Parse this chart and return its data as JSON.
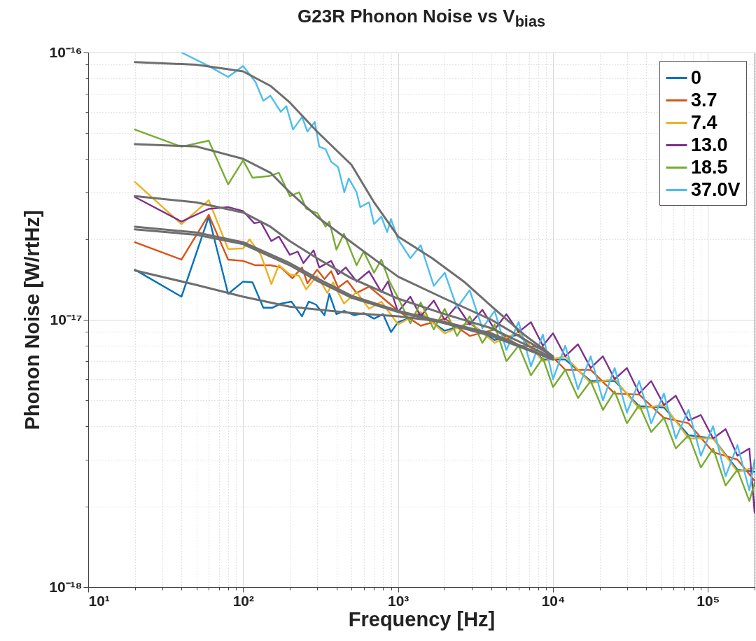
{
  "chart_data": {
    "type": "line",
    "title": "G23R Phonon Noise vs V$_{bias}$",
    "xlabel": "Frequency [Hz]",
    "ylabel": "Phonon Noise [W/rtHz]",
    "log": "xy",
    "grid": true,
    "legend": "top right",
    "xlim": [
      10,
      200000
    ],
    "ylim": [
      1e-18,
      1e-16
    ],
    "xticks": [
      {
        "value": 10,
        "label": "10¹"
      },
      {
        "value": 20,
        "label": null
      },
      {
        "value": 30,
        "label": null
      },
      {
        "value": 40,
        "label": null
      },
      {
        "value": 50,
        "label": null
      },
      {
        "value": 60,
        "label": null
      },
      {
        "value": 70,
        "label": null
      },
      {
        "value": 80,
        "label": null
      },
      {
        "value": 90,
        "label": null
      },
      {
        "value": 100,
        "label": "10²"
      },
      {
        "value": 200,
        "label": null
      },
      {
        "value": 300,
        "label": null
      },
      {
        "value": 400,
        "label": null
      },
      {
        "value": 500,
        "label": null
      },
      {
        "value": 600,
        "label": null
      },
      {
        "value": 700,
        "label": null
      },
      {
        "value": 800,
        "label": null
      },
      {
        "value": 900,
        "label": null
      },
      {
        "value": 1000,
        "label": "10³"
      },
      {
        "value": 2000,
        "label": null
      },
      {
        "value": 3000,
        "label": null
      },
      {
        "value": 4000,
        "label": null
      },
      {
        "value": 5000,
        "label": null
      },
      {
        "value": 6000,
        "label": null
      },
      {
        "value": 7000,
        "label": null
      },
      {
        "value": 8000,
        "label": null
      },
      {
        "value": 9000,
        "label": null
      },
      {
        "value": 10000,
        "label": "10⁴"
      },
      {
        "value": 20000,
        "label": null
      },
      {
        "value": 30000,
        "label": null
      },
      {
        "value": 40000,
        "label": null
      },
      {
        "value": 50000,
        "label": null
      },
      {
        "value": 60000,
        "label": null
      },
      {
        "value": 70000,
        "label": null
      },
      {
        "value": 80000,
        "label": null
      },
      {
        "value": 90000,
        "label": null
      },
      {
        "value": 100000,
        "label": "10⁵"
      },
      {
        "value": 200000,
        "label": null
      }
    ],
    "yticks": [
      {
        "value": 1e-18,
        "label": "10⁻¹⁸"
      },
      {
        "value": 2e-18,
        "label": null
      },
      {
        "value": 3e-18,
        "label": null
      },
      {
        "value": 4e-18,
        "label": null
      },
      {
        "value": 5e-18,
        "label": null
      },
      {
        "value": 6e-18,
        "label": null
      },
      {
        "value": 7e-18,
        "label": null
      },
      {
        "value": 8e-18,
        "label": null
      },
      {
        "value": 9e-18,
        "label": null
      },
      {
        "value": 1e-17,
        "label": "10⁻¹⁷"
      },
      {
        "value": 2e-17,
        "label": null
      },
      {
        "value": 3e-17,
        "label": null
      },
      {
        "value": 4e-17,
        "label": null
      },
      {
        "value": 5e-17,
        "label": null
      },
      {
        "value": 6e-17,
        "label": null
      },
      {
        "value": 7e-17,
        "label": null
      },
      {
        "value": 8e-17,
        "label": null
      },
      {
        "value": 9e-17,
        "label": null
      },
      {
        "value": 1e-16,
        "label": "10⁻¹⁶"
      }
    ],
    "series": [
      {
        "name": "0",
        "color": "#0072bd",
        "x": [
          20,
          40,
          60,
          80,
          100,
          115,
          135,
          155,
          175,
          205,
          240,
          265,
          295,
          335,
          360,
          400,
          450,
          520,
          600,
          700,
          800,
          900,
          1000,
          1400,
          2000,
          2900,
          4200,
          6000,
          8600,
          12000,
          17500,
          25000,
          36000,
          52000,
          75000,
          108000,
          155000,
          200000
        ],
        "values": [
          1.54e-17,
          1.22e-17,
          2.43e-17,
          1.25e-17,
          1.39e-17,
          1.38e-17,
          1.11e-17,
          1.11e-17,
          1.15e-17,
          1.17e-17,
          1.03e-17,
          1.17e-17,
          1.14e-17,
          1.04e-17,
          1.25e-17,
          1.05e-17,
          1.08e-17,
          1.04e-17,
          1.06e-17,
          1.01e-17,
          1.05e-17,
          9e-18,
          9.8e-18,
          1.05e-17,
          9.1e-18,
          9.7e-18,
          8.4e-18,
          8.8e-18,
          7.1e-18,
          7.1e-18,
          5.9e-18,
          5.9e-18,
          4.75e-18,
          4.7e-18,
          3.7e-18,
          3.6e-18,
          2.75e-18,
          2.7e-18
        ]
      },
      {
        "name": "3.7",
        "color": "#d95319",
        "x": [
          20,
          40,
          60,
          80,
          100,
          120,
          150,
          175,
          208,
          240,
          260,
          300,
          335,
          370,
          410,
          470,
          540,
          650,
          780,
          1000,
          1400,
          2000,
          2900,
          4200,
          6000,
          8600,
          12000,
          17500,
          25000,
          36000,
          52000,
          75000,
          108000,
          155000,
          200000
        ],
        "values": [
          1.95e-17,
          1.68e-17,
          2.47e-17,
          1.68e-17,
          1.66e-17,
          1.6e-17,
          1.6e-17,
          1.57e-17,
          1.43e-17,
          1.57e-17,
          1.37e-17,
          1.54e-17,
          1.42e-17,
          1.52e-17,
          1.32e-17,
          1.4e-17,
          1.26e-17,
          1.33e-17,
          1.22e-17,
          1.08e-17,
          9.5e-18,
          1.01e-17,
          8.7e-18,
          9.2e-18,
          8e-18,
          7.9e-18,
          6.5e-18,
          6.5e-18,
          5.3e-18,
          5.25e-18,
          4.3e-18,
          4.1e-18,
          3.2e-18,
          3e-18,
          2.5e-18
        ]
      },
      {
        "name": "7.4",
        "color": "#edb120",
        "x": [
          20,
          40,
          60,
          80,
          100,
          110,
          130,
          152,
          170,
          200,
          230,
          255,
          300,
          350,
          380,
          447,
          540,
          650,
          780,
          1000,
          1400,
          2000,
          2900,
          4200,
          6000,
          8600,
          12000,
          17500,
          25000,
          36000,
          52000,
          75000,
          108000,
          155000,
          200000
        ],
        "values": [
          3.28e-17,
          2.28e-17,
          2.8e-17,
          1.84e-17,
          1.85e-17,
          2e-17,
          1.75e-17,
          1.36e-17,
          1.6e-17,
          1.48e-17,
          1.46e-17,
          1.3e-17,
          1.46e-17,
          1.26e-17,
          1.38e-17,
          1.15e-17,
          1.27e-17,
          1.1e-17,
          1.17e-17,
          9.6e-18,
          1.07e-17,
          8.9e-18,
          9.8e-18,
          8.2e-18,
          9e-18,
          7e-18,
          7.3e-18,
          5.8e-18,
          6e-18,
          4.65e-18,
          4.8e-18,
          3.6e-18,
          3.6e-18,
          2.7e-18,
          2.8e-18
        ]
      },
      {
        "name": "13.0",
        "color": "#7e2f8e",
        "x": [
          20,
          40,
          60,
          80,
          100,
          118,
          130,
          152,
          170,
          200,
          225,
          245,
          285,
          310,
          370,
          410,
          460,
          540,
          650,
          780,
          860,
          1000,
          1200,
          1400,
          1700,
          2000,
          2400,
          2900,
          3500,
          4200,
          5000,
          6000,
          7200,
          8600,
          10000,
          12000,
          14500,
          17500,
          21000,
          25000,
          30000,
          36000,
          43000,
          52000,
          62000,
          75000,
          90000,
          108000,
          130000,
          155000,
          185000,
          200000
        ],
        "values": [
          2.88e-17,
          2.33e-17,
          2.6e-17,
          2.64e-17,
          2.55e-17,
          2.3e-17,
          2.32e-17,
          1.97e-17,
          2.05e-17,
          1.75e-17,
          1.8e-17,
          1.63e-17,
          1.82e-17,
          1.57e-17,
          1.66e-17,
          1.48e-17,
          1.57e-17,
          1.39e-17,
          1.52e-17,
          1.27e-17,
          1.39e-17,
          1.07e-17,
          1.22e-17,
          1.03e-17,
          1.18e-17,
          1e-17,
          1.13e-17,
          9.6e-18,
          1.09e-17,
          9.2e-18,
          1.05e-17,
          9e-18,
          9.8e-18,
          8e-18,
          8.9e-18,
          7.3e-18,
          8.1e-18,
          6.6e-18,
          7.3e-18,
          6e-18,
          6.6e-18,
          5.3e-18,
          5.9e-18,
          4.8e-18,
          5.2e-18,
          4.2e-18,
          4.4e-18,
          3.6e-18,
          3.9e-18,
          3.1e-18,
          3.3e-18,
          1.9e-18
        ]
      },
      {
        "name": "18.5",
        "color": "#77ac30",
        "x": [
          20,
          40,
          60,
          80,
          100,
          115,
          148,
          170,
          200,
          230,
          256,
          303,
          340,
          360,
          400,
          447,
          540,
          600,
          700,
          780,
          880,
          1000,
          1200,
          1400,
          1700,
          2000,
          2400,
          2900,
          3500,
          4200,
          5000,
          6000,
          7200,
          8600,
          10000,
          12000,
          14500,
          17500,
          21000,
          25000,
          30000,
          36000,
          43000,
          52000,
          62000,
          75000,
          90000,
          108000,
          130000,
          155000,
          185000,
          200000
        ],
        "values": [
          5.15e-17,
          4.44e-17,
          4.68e-17,
          3.21e-17,
          3.95e-17,
          3.4e-17,
          3.45e-17,
          3.55e-17,
          2.9e-17,
          3e-17,
          2.6e-17,
          2.5e-17,
          2.23e-17,
          2.33e-17,
          1.83e-17,
          2.1e-17,
          1.6e-17,
          1.8e-17,
          1.5e-17,
          1.68e-17,
          1.39e-17,
          1.21e-17,
          9.7e-18,
          1.16e-17,
          9.2e-18,
          1.1e-17,
          8.7e-18,
          1.03e-17,
          8.2e-18,
          9.6e-18,
          7e-18,
          8e-18,
          6.2e-18,
          7.2e-18,
          5.6e-18,
          6.5e-18,
          5.1e-18,
          5.9e-18,
          4.6e-18,
          5.4e-18,
          4.1e-18,
          4.8e-18,
          3.8e-18,
          4.3e-18,
          3.3e-18,
          3.7e-18,
          2.8e-18,
          3.3e-18,
          2.4e-18,
          2.75e-18,
          2.1e-18,
          2.45e-18
        ]
      },
      {
        "name": "37.0V",
        "color": "#4dbeee",
        "x": [
          40,
          60,
          80,
          100,
          120,
          135,
          150,
          175,
          190,
          210,
          240,
          260,
          290,
          310,
          340,
          370,
          410,
          450,
          480,
          540,
          570,
          650,
          700,
          780,
          850,
          900,
          1000,
          1200,
          1400,
          1700,
          2000,
          2400,
          2900,
          3500,
          4200,
          5000,
          6000,
          7200,
          8600,
          10000,
          12000,
          14500,
          17500,
          21000,
          25000,
          30000,
          36000,
          43000,
          52000,
          62000,
          75000,
          90000,
          108000,
          130000,
          155000,
          185000,
          200000
        ],
        "values": [
          1e-16,
          8.9e-17,
          8.1e-17,
          8.9e-17,
          7.76e-17,
          6.6e-17,
          6.89e-17,
          6e-17,
          6.3e-17,
          5.15e-17,
          5.74e-17,
          5.06e-17,
          5.5e-17,
          4.44e-17,
          4.35e-17,
          3.9e-17,
          3.73e-17,
          3e-17,
          3.38e-17,
          3e-17,
          2.64e-17,
          2.75e-17,
          2.28e-17,
          2.43e-17,
          2.13e-17,
          2.38e-17,
          2e-17,
          1.7e-17,
          1.9e-17,
          1.34e-17,
          1.5e-17,
          1.11e-17,
          1.29e-17,
          9.3e-18,
          1.08e-17,
          7.7e-18,
          9.8e-18,
          6.7e-18,
          8.8e-18,
          6e-18,
          8e-18,
          5.5e-18,
          7.3e-18,
          5e-18,
          6.6e-18,
          4.5e-18,
          5.9e-18,
          4.1e-18,
          5.3e-18,
          3.6e-18,
          4.6e-18,
          3.1e-18,
          4e-18,
          2.6e-18,
          3.4e-18,
          2.3e-18,
          3e-18
        ]
      },
      {
        "color": "#6e6e6e",
        "x": [
          20,
          50,
          100,
          200,
          500,
          1000,
          2000,
          4000,
          10000
        ],
        "values": [
          1.53e-17,
          1.35e-17,
          1.22e-17,
          1.12e-17,
          1.06e-17,
          1.03e-17,
          9.8e-18,
          8.9e-18,
          7.1e-18
        ]
      },
      {
        "color": "#6e6e6e",
        "x": [
          20,
          50,
          100,
          200,
          300,
          500,
          1000,
          2000,
          4000,
          10000
        ],
        "values": [
          2.23e-17,
          2.12e-17,
          1.95e-17,
          1.63e-17,
          1.43e-17,
          1.23e-17,
          1.08e-17,
          9.8e-18,
          8.8e-18,
          7.1e-18
        ]
      },
      {
        "color": "#6e6e6e",
        "x": [
          20,
          50,
          100,
          200,
          300,
          500,
          1000,
          2000,
          4000,
          10000
        ],
        "values": [
          2.18e-17,
          2.08e-17,
          1.92e-17,
          1.6e-17,
          1.4e-17,
          1.21e-17,
          1.07e-17,
          9.7e-18,
          8.7e-18,
          7.1e-18
        ]
      },
      {
        "color": "#6e6e6e",
        "x": [
          20,
          50,
          100,
          150,
          200,
          300,
          500,
          1000,
          2000,
          4000,
          10000
        ],
        "values": [
          2.9e-17,
          2.75e-17,
          2.52e-17,
          2.23e-17,
          1.97e-17,
          1.7e-17,
          1.43e-17,
          1.2e-17,
          1.05e-17,
          9.3e-18,
          7.2e-18
        ]
      },
      {
        "color": "#6e6e6e",
        "x": [
          20,
          50,
          100,
          150,
          200,
          300,
          500,
          1000,
          2000,
          4000,
          10000
        ],
        "values": [
          4.54e-17,
          4.45e-17,
          4e-17,
          3.55e-17,
          3e-17,
          2.43e-17,
          1.95e-17,
          1.45e-17,
          1.2e-17,
          1e-17,
          7.3e-18
        ]
      },
      {
        "color": "#6e6e6e",
        "x": [
          20,
          50,
          100,
          150,
          200,
          300,
          500,
          700,
          1000,
          1660,
          2700,
          4100,
          6500,
          10000
        ],
        "values": [
          9.2e-17,
          9e-17,
          8.5e-17,
          7.5e-17,
          6.5e-17,
          5.06e-17,
          3.8e-17,
          2.75e-17,
          2.05e-17,
          1.7e-17,
          1.38e-17,
          1.11e-17,
          8.8e-18,
          7.3e-18
        ]
      }
    ]
  }
}
